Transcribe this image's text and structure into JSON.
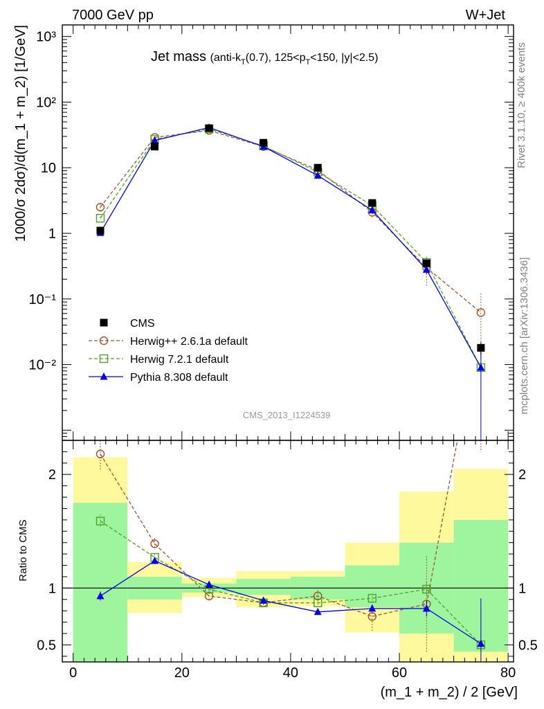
{
  "header": {
    "left": "7000 GeV pp",
    "right": "W+Jet"
  },
  "side_labels": {
    "rivet": "Rivet 3.1.10, ≥ 400k events",
    "mcplots": "mcplots.cern.ch [arXiv:1306.3436]"
  },
  "plot_title": {
    "main": "Jet mass",
    "detail": "(anti-k_T(0.7), 125<p_T<150, |y|<2.5)"
  },
  "watermark": "CMS_2013_I1224539",
  "chart_data": {
    "type": "scatter",
    "main": {
      "ylabel": "1000/σ 2dσ)/d(m_1 + m_2) [1/GeV]",
      "yscale": "log",
      "ylim": [
        0.0007,
        1500
      ],
      "ytick_labels": [
        "10³",
        "10²",
        "10",
        "1",
        "10⁻¹",
        "10⁻²"
      ],
      "ytick_values": [
        1000,
        100,
        10,
        1,
        0.1,
        0.01
      ]
    },
    "ratio": {
      "ylabel": "Ratio to CMS",
      "ylim": [
        0.35,
        2.3
      ],
      "ytick_labels": [
        "0.5",
        "1",
        "2"
      ],
      "ytick_values": [
        0.5,
        1,
        2
      ]
    },
    "xlabel": "(m_1 + m_2) / 2 [GeV]",
    "xlim": [
      -2,
      81
    ],
    "xtick_labels": [
      "0",
      "20",
      "40",
      "60",
      "80"
    ],
    "xtick_values": [
      0,
      20,
      40,
      60,
      80
    ],
    "bins": [
      [
        0,
        10
      ],
      [
        10,
        20
      ],
      [
        20,
        30
      ],
      [
        30,
        40
      ],
      [
        40,
        50
      ],
      [
        50,
        60
      ],
      [
        60,
        70
      ],
      [
        70,
        80
      ]
    ],
    "x": [
      5,
      15,
      25,
      35,
      45,
      55,
      65,
      75
    ],
    "data_band_green": [
      [
        0.35,
        1.75
      ],
      [
        0.9,
        1.1
      ],
      [
        0.96,
        1.04
      ],
      [
        0.94,
        1.08
      ],
      [
        0.9,
        1.1
      ],
      [
        0.83,
        1.2
      ],
      [
        0.6,
        1.4
      ],
      [
        0.44,
        1.6
      ]
    ],
    "data_band_yellow": [
      [
        0.35,
        2.15
      ],
      [
        0.78,
        1.23
      ],
      [
        0.92,
        1.09
      ],
      [
        0.83,
        1.15
      ],
      [
        0.84,
        1.15
      ],
      [
        0.61,
        1.4
      ],
      [
        0.35,
        1.85
      ],
      [
        0.35,
        2.05
      ]
    ],
    "series": [
      {
        "name": "CMS",
        "color": "#000000",
        "marker": "square-filled",
        "line": "none",
        "values": [
          1.1,
          21,
          40,
          24,
          10,
          2.9,
          0.35,
          0.018
        ],
        "yerr_low": [
          0.05,
          1,
          2,
          1.2,
          0.5,
          0.2,
          0.04,
          0.004
        ],
        "yerr_high": [
          0.05,
          1,
          2,
          1.2,
          0.5,
          0.2,
          0.04,
          0.004
        ]
      },
      {
        "name": "Herwig++ 2.6.1a default",
        "color": "#a0522d",
        "marker": "circle-open",
        "line": "dashed",
        "values": [
          2.5,
          29,
          37,
          21,
          9.2,
          2.1,
          0.3,
          0.062
        ],
        "yerr_low": [
          0.3,
          1,
          1,
          0.7,
          0.4,
          0.35,
          0.14,
          0.05
        ],
        "yerr_high": [
          0.3,
          1,
          1,
          0.7,
          0.4,
          0.35,
          0.14,
          0.06
        ],
        "ratio": [
          2.18,
          1.39,
          0.93,
          0.87,
          0.93,
          0.75,
          0.86,
          3.4
        ],
        "ratio_err": [
          0.15,
          0.05,
          0.03,
          0.04,
          0.05,
          0.13,
          0.42,
          1.2
        ]
      },
      {
        "name": "Herwig 7.2.1 default",
        "color": "#4ea02a",
        "marker": "square-open",
        "line": "dashed",
        "values": [
          1.7,
          27,
          39,
          21.5,
          8.6,
          2.65,
          0.36,
          0.009
        ],
        "yerr_low": [
          0.1,
          1,
          1,
          0.6,
          0.3,
          0.15,
          0.04,
          0.006
        ],
        "yerr_high": [
          0.1,
          1,
          1,
          0.6,
          0.3,
          0.15,
          0.04,
          0.006
        ],
        "ratio": [
          1.59,
          1.27,
          0.99,
          0.87,
          0.87,
          0.91,
          0.99,
          0.5
        ],
        "ratio_err": [
          0.06,
          0.03,
          0.02,
          0.02,
          0.02,
          0.04,
          0.06,
          0.3
        ]
      },
      {
        "name": "Pythia 8.308 default",
        "color": "#0000e6",
        "marker": "triangle-filled",
        "line": "solid",
        "values": [
          1.02,
          26,
          41,
          21,
          7.6,
          2.25,
          0.28,
          0.009
        ],
        "yerr_low": [
          0.04,
          1,
          1,
          0.6,
          0.3,
          0.12,
          0.04,
          0.0085
        ],
        "yerr_high": [
          0.04,
          1,
          1,
          0.6,
          0.3,
          0.12,
          0.04,
          0.0085
        ],
        "ratio": [
          0.93,
          1.24,
          1.03,
          0.89,
          0.79,
          0.82,
          0.82,
          0.51
        ],
        "ratio_err": [
          0.04,
          0.02,
          0.02,
          0.02,
          0.02,
          0.03,
          0.07,
          0.4
        ]
      }
    ],
    "legend_position": "lower-left"
  },
  "colors": {
    "band_green": "#9ef59e",
    "band_yellow": "#fff99e"
  }
}
